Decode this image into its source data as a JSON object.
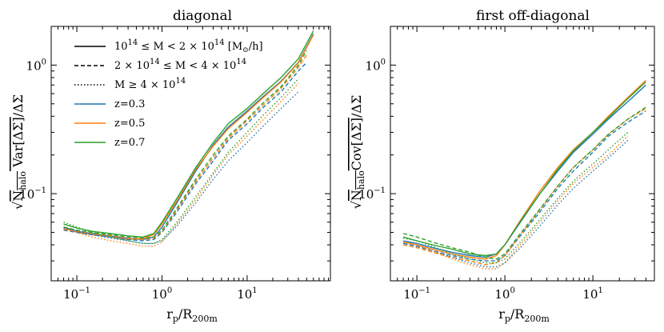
{
  "chart_data": [
    {
      "type": "line",
      "title": "diagonal",
      "xlabel": "r_p/R_200m",
      "ylabel": "sqrt(N_halo Var[ΔΣ])/ΔΣ",
      "xscale": "log",
      "yscale": "log",
      "xlim": [
        0.05,
        95
      ],
      "ylim": [
        0.021,
        2.0
      ],
      "xticks": [
        0.1,
        1,
        10
      ],
      "yticks": [
        0.1,
        1
      ],
      "grid": false,
      "legend": {
        "placement": "top-left",
        "entries": [
          {
            "label": "10^14 ≤ M < 2 × 10^14 [M⊙/h]",
            "linestyle": "solid",
            "color": "#000000"
          },
          {
            "label": "2 × 10^14 ≤ M < 4 × 10^14",
            "linestyle": "dashed",
            "color": "#000000"
          },
          {
            "label": "M ≥ 4 × 10^14",
            "linestyle": "dotted",
            "color": "#000000"
          },
          {
            "label": "z=0.3",
            "linestyle": "solid",
            "color": "#1f77b4"
          },
          {
            "label": "z=0.5",
            "linestyle": "solid",
            "color": "#ff7f0e"
          },
          {
            "label": "z=0.7",
            "linestyle": "solid",
            "color": "#2ca02c"
          }
        ]
      },
      "series": [
        {
          "mass_bin": "low",
          "z": 0.3,
          "color": "#1f77b4",
          "linestyle": "solid",
          "x": [
            0.07,
            0.1,
            0.15,
            0.25,
            0.4,
            0.6,
            0.8,
            1.0,
            1.5,
            2.5,
            4,
            6,
            10,
            15,
            25,
            40,
            60
          ],
          "y": [
            0.055,
            0.051,
            0.049,
            0.047,
            0.045,
            0.044,
            0.046,
            0.055,
            0.085,
            0.15,
            0.24,
            0.33,
            0.44,
            0.56,
            0.75,
            1.05,
            1.75
          ]
        },
        {
          "mass_bin": "low",
          "z": 0.5,
          "color": "#ff7f0e",
          "linestyle": "solid",
          "x": [
            0.07,
            0.1,
            0.15,
            0.25,
            0.4,
            0.6,
            0.8,
            1.0,
            1.5,
            2.5,
            4,
            6,
            10,
            15,
            25,
            40,
            60
          ],
          "y": [
            0.054,
            0.05,
            0.048,
            0.046,
            0.044,
            0.045,
            0.048,
            0.058,
            0.088,
            0.155,
            0.235,
            0.32,
            0.43,
            0.55,
            0.74,
            1.04,
            1.72
          ]
        },
        {
          "mass_bin": "low",
          "z": 0.7,
          "color": "#2ca02c",
          "linestyle": "solid",
          "x": [
            0.07,
            0.1,
            0.15,
            0.25,
            0.4,
            0.6,
            0.8,
            1.0,
            1.5,
            2.5,
            4,
            6,
            10,
            15,
            25,
            40,
            60
          ],
          "y": [
            0.058,
            0.054,
            0.051,
            0.049,
            0.047,
            0.046,
            0.049,
            0.06,
            0.092,
            0.16,
            0.25,
            0.35,
            0.46,
            0.59,
            0.8,
            1.12,
            1.85
          ]
        },
        {
          "mass_bin": "mid",
          "z": 0.3,
          "color": "#1f77b4",
          "linestyle": "dashed",
          "x": [
            0.07,
            0.1,
            0.15,
            0.25,
            0.4,
            0.6,
            0.8,
            1.0,
            1.5,
            2.5,
            4,
            6,
            10,
            15,
            25,
            40,
            50
          ],
          "y": [
            0.052,
            0.05,
            0.048,
            0.046,
            0.044,
            0.043,
            0.044,
            0.05,
            0.072,
            0.12,
            0.18,
            0.26,
            0.35,
            0.46,
            0.62,
            0.9,
            1.05
          ]
        },
        {
          "mass_bin": "mid",
          "z": 0.5,
          "color": "#ff7f0e",
          "linestyle": "dashed",
          "x": [
            0.07,
            0.1,
            0.15,
            0.25,
            0.4,
            0.6,
            0.8,
            1.0,
            1.5,
            2.5,
            4,
            6,
            10,
            15,
            25,
            40,
            50
          ],
          "y": [
            0.053,
            0.051,
            0.049,
            0.047,
            0.045,
            0.044,
            0.045,
            0.051,
            0.075,
            0.125,
            0.19,
            0.27,
            0.37,
            0.48,
            0.66,
            0.96,
            1.2
          ]
        },
        {
          "mass_bin": "mid",
          "z": 0.7,
          "color": "#2ca02c",
          "linestyle": "dashed",
          "x": [
            0.07,
            0.1,
            0.15,
            0.25,
            0.4,
            0.6,
            0.8,
            1.0,
            1.5,
            2.5,
            4,
            6,
            10,
            15,
            25,
            40,
            50
          ],
          "y": [
            0.055,
            0.052,
            0.05,
            0.048,
            0.046,
            0.045,
            0.046,
            0.052,
            0.077,
            0.13,
            0.2,
            0.28,
            0.38,
            0.5,
            0.68,
            1.0,
            1.3
          ]
        },
        {
          "mass_bin": "high",
          "z": 0.3,
          "color": "#1f77b4",
          "linestyle": "dotted",
          "x": [
            0.07,
            0.1,
            0.15,
            0.25,
            0.4,
            0.6,
            0.8,
            1.0,
            1.5,
            2.5,
            4,
            6,
            10,
            15,
            25,
            40
          ],
          "y": [
            0.054,
            0.051,
            0.048,
            0.045,
            0.043,
            0.041,
            0.041,
            0.043,
            0.056,
            0.085,
            0.13,
            0.18,
            0.25,
            0.33,
            0.46,
            0.62
          ]
        },
        {
          "mass_bin": "high",
          "z": 0.5,
          "color": "#ff7f0e",
          "linestyle": "dotted",
          "x": [
            0.07,
            0.1,
            0.15,
            0.25,
            0.4,
            0.6,
            0.8,
            1.0,
            1.5,
            2.5,
            4,
            6,
            10,
            15,
            25,
            40
          ],
          "y": [
            0.053,
            0.05,
            0.046,
            0.043,
            0.041,
            0.039,
            0.039,
            0.042,
            0.058,
            0.09,
            0.14,
            0.2,
            0.28,
            0.37,
            0.52,
            0.72
          ]
        },
        {
          "mass_bin": "high",
          "z": 0.7,
          "color": "#2ca02c",
          "linestyle": "dotted",
          "x": [
            0.07,
            0.1,
            0.15,
            0.25,
            0.4,
            0.6,
            0.8,
            1.0,
            1.5,
            2.5,
            4,
            6,
            10,
            15,
            25,
            40
          ],
          "y": [
            0.06,
            0.055,
            0.05,
            0.046,
            0.043,
            0.041,
            0.041,
            0.044,
            0.06,
            0.095,
            0.145,
            0.21,
            0.3,
            0.4,
            0.56,
            0.78
          ]
        }
      ]
    },
    {
      "type": "line",
      "title": "first off-diagonal",
      "xlabel": "r_p/R_200m",
      "ylabel": "sqrt(N_halo Cov[ΔΣ])/ΔΣ",
      "xscale": "log",
      "yscale": "log",
      "xlim": [
        0.05,
        50
      ],
      "ylim": [
        0.021,
        2.0
      ],
      "xticks": [
        0.1,
        1,
        10
      ],
      "yticks": [
        0.1,
        1
      ],
      "grid": false,
      "series": [
        {
          "mass_bin": "low",
          "z": 0.3,
          "color": "#1f77b4",
          "linestyle": "solid",
          "x": [
            0.07,
            0.1,
            0.15,
            0.25,
            0.4,
            0.6,
            0.8,
            1.0,
            1.5,
            2.5,
            4,
            6,
            10,
            15,
            25,
            40
          ],
          "y": [
            0.043,
            0.041,
            0.038,
            0.035,
            0.033,
            0.032,
            0.034,
            0.04,
            0.06,
            0.1,
            0.15,
            0.21,
            0.29,
            0.38,
            0.52,
            0.7
          ]
        },
        {
          "mass_bin": "low",
          "z": 0.5,
          "color": "#ff7f0e",
          "linestyle": "solid",
          "x": [
            0.07,
            0.1,
            0.15,
            0.25,
            0.4,
            0.6,
            0.8,
            1.0,
            1.5,
            2.5,
            4,
            6,
            10,
            15,
            25,
            40
          ],
          "y": [
            0.042,
            0.04,
            0.037,
            0.034,
            0.032,
            0.031,
            0.033,
            0.04,
            0.062,
            0.105,
            0.16,
            0.22,
            0.3,
            0.4,
            0.56,
            0.76
          ]
        },
        {
          "mass_bin": "low",
          "z": 0.7,
          "color": "#2ca02c",
          "linestyle": "solid",
          "x": [
            0.07,
            0.1,
            0.15,
            0.25,
            0.4,
            0.6,
            0.8,
            1.0,
            1.5,
            2.5,
            4,
            6,
            10,
            15,
            25,
            40
          ],
          "y": [
            0.046,
            0.043,
            0.04,
            0.037,
            0.034,
            0.033,
            0.034,
            0.04,
            0.061,
            0.1,
            0.155,
            0.215,
            0.3,
            0.39,
            0.55,
            0.74
          ]
        },
        {
          "mass_bin": "mid",
          "z": 0.3,
          "color": "#1f77b4",
          "linestyle": "dashed",
          "x": [
            0.07,
            0.1,
            0.15,
            0.25,
            0.4,
            0.6,
            0.8,
            1.0,
            1.5,
            2.5,
            4,
            6,
            10,
            15,
            25,
            40
          ],
          "y": [
            0.041,
            0.039,
            0.036,
            0.033,
            0.031,
            0.03,
            0.03,
            0.033,
            0.047,
            0.072,
            0.11,
            0.15,
            0.21,
            0.28,
            0.36,
            0.44
          ]
        },
        {
          "mass_bin": "mid",
          "z": 0.5,
          "color": "#ff7f0e",
          "linestyle": "dashed",
          "x": [
            0.07,
            0.1,
            0.15,
            0.25,
            0.4,
            0.6,
            0.8,
            1.0,
            1.5,
            2.5,
            4,
            6,
            10,
            15,
            25,
            40
          ],
          "y": [
            0.04,
            0.038,
            0.035,
            0.032,
            0.03,
            0.028,
            0.029,
            0.033,
            0.048,
            0.075,
            0.115,
            0.16,
            0.22,
            0.29,
            0.38,
            0.46
          ]
        },
        {
          "mass_bin": "mid",
          "z": 0.7,
          "color": "#2ca02c",
          "linestyle": "dashed",
          "x": [
            0.07,
            0.1,
            0.15,
            0.25,
            0.4,
            0.6,
            0.8,
            1.0,
            1.5,
            2.5,
            4,
            6,
            10,
            15,
            25,
            40
          ],
          "y": [
            0.049,
            0.046,
            0.042,
            0.038,
            0.035,
            0.032,
            0.031,
            0.034,
            0.049,
            0.076,
            0.115,
            0.16,
            0.22,
            0.29,
            0.38,
            0.47
          ]
        },
        {
          "mass_bin": "high",
          "z": 0.3,
          "color": "#1f77b4",
          "linestyle": "dotted",
          "x": [
            0.07,
            0.1,
            0.15,
            0.25,
            0.4,
            0.6,
            0.8,
            1.0,
            1.5,
            2.5,
            4,
            6,
            10,
            15,
            25
          ],
          "y": [
            0.041,
            0.039,
            0.036,
            0.032,
            0.029,
            0.027,
            0.027,
            0.029,
            0.038,
            0.056,
            0.082,
            0.11,
            0.15,
            0.19,
            0.26
          ]
        },
        {
          "mass_bin": "high",
          "z": 0.5,
          "color": "#ff7f0e",
          "linestyle": "dotted",
          "x": [
            0.07,
            0.1,
            0.15,
            0.25,
            0.4,
            0.6,
            0.8,
            1.0,
            1.5,
            2.5,
            4,
            6,
            10,
            15,
            25
          ],
          "y": [
            0.042,
            0.04,
            0.036,
            0.031,
            0.028,
            0.026,
            0.026,
            0.029,
            0.04,
            0.06,
            0.088,
            0.12,
            0.16,
            0.2,
            0.28
          ]
        },
        {
          "mass_bin": "high",
          "z": 0.7,
          "color": "#2ca02c",
          "linestyle": "dotted",
          "x": [
            0.07,
            0.1,
            0.15,
            0.25,
            0.4,
            0.6,
            0.8,
            1.0,
            1.5,
            2.5,
            4,
            6,
            10,
            15,
            25
          ],
          "y": [
            0.045,
            0.043,
            0.039,
            0.034,
            0.031,
            0.029,
            0.029,
            0.031,
            0.042,
            0.063,
            0.092,
            0.125,
            0.17,
            0.22,
            0.3
          ]
        }
      ]
    }
  ]
}
